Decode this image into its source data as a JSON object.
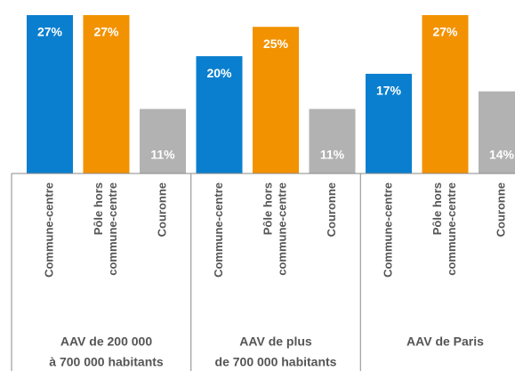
{
  "chart_data": {
    "type": "bar",
    "groups": [
      [
        "AAV de 200 000",
        "à 700 000 habitants"
      ],
      [
        "AAV de plus",
        "de 700 000 habitants"
      ],
      [
        "AAV de Paris"
      ]
    ],
    "series": [
      {
        "name": [
          "Commune-centre"
        ],
        "color": "#0a7fcf",
        "label_position": "top",
        "values": [
          27,
          20,
          17
        ],
        "value_labels": [
          "27%",
          "20%",
          "17%"
        ]
      },
      {
        "name": [
          "Pôle hors",
          "commune-centre"
        ],
        "color": "#f39200",
        "label_position": "top",
        "values": [
          27,
          25,
          27
        ],
        "value_labels": [
          "27%",
          "25%",
          "27%"
        ]
      },
      {
        "name": [
          "Couronne"
        ],
        "color": "#b2b2b2",
        "label_position": "bottom",
        "values": [
          11,
          11,
          14
        ],
        "value_labels": [
          "11%",
          "11%",
          "14%"
        ]
      }
    ]
  }
}
